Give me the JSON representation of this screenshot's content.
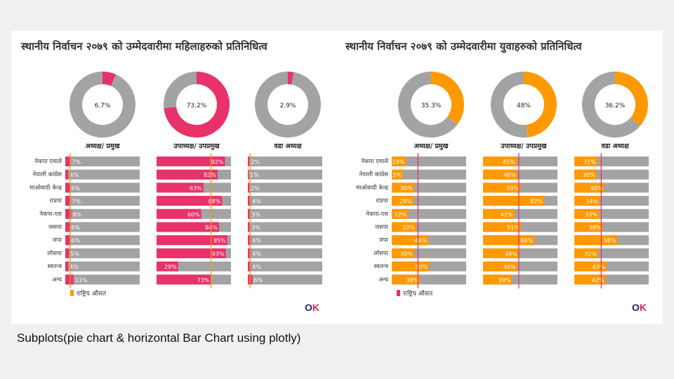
{
  "caption": "Subplots(pie chart & horizontal Bar Chart using plotly)",
  "legend_label": "राष्ट्रिय औसत",
  "logo_text": {
    "o": "O",
    "k": "K"
  },
  "colors": {
    "gray": "#a3a3a3",
    "women": "#e8326a",
    "youth": "#ff9900",
    "women_avg": "#ff9900",
    "youth_avg": "#e8326a"
  },
  "chart_data": [
    {
      "type": "pie",
      "title": "स्थानीय निर्वाचन २०७९ को उम्मेदवारीमा महिलाहरुको प्रतिनिधित्व",
      "categories": [
        "अध्यक्ष/ प्रमुख",
        "उपाध्यक्ष/ उपप्रमुख",
        "वडा अध्यक्ष"
      ],
      "values": [
        6.7,
        73.2,
        2.9
      ],
      "labels": [
        "6.7%",
        "73.2%",
        "2.9%"
      ],
      "colors": [
        "#e8326a",
        "#a3a3a3"
      ]
    },
    {
      "type": "bar",
      "orientation": "horizontal",
      "parties": [
        "नेकपा एमाले",
        "नेपाली कांग्रेस",
        "माओवादी केन्द्र",
        "राप्रपा",
        "नेकपा-एस",
        "जसपा",
        "जपा",
        "लोसपा",
        "स्वतन्त्र",
        "अन्य"
      ],
      "series": [
        {
          "values": [
            7,
            4,
            6,
            7,
            8,
            6,
            6,
            5,
            4,
            11
          ]
        },
        {
          "values": [
            92,
            82,
            63,
            88,
            60,
            84,
            95,
            93,
            29,
            73
          ]
        },
        {
          "values": [
            2,
            1,
            2,
            4,
            3,
            3,
            4,
            4,
            4,
            6
          ]
        }
      ],
      "national_average": [
        6.7,
        73.2,
        2.9
      ],
      "xlim": [
        0,
        100
      ]
    },
    {
      "type": "pie",
      "title": "स्थानीय निर्वाचन २०७९ को उम्मेदवारीमा युवाहरुको प्रतिनिधित्व",
      "categories": [
        "अध्यक्ष/ प्रमुख",
        "उपाध्यक्ष/ उपप्रमुख",
        "वडा अध्यक्ष"
      ],
      "values": [
        35.3,
        48,
        36.2
      ],
      "labels": [
        "35.3%",
        "48%",
        "36.2%"
      ],
      "colors": [
        "#ff9900",
        "#a3a3a3"
      ]
    },
    {
      "type": "bar",
      "orientation": "horizontal",
      "parties": [
        "नेकपा एमाले",
        "नेपाली कांग्रेस",
        "माओवादी केन्द्र",
        "राप्रपा",
        "नेकपा-एस",
        "जसपा",
        "जपा",
        "लोसपा",
        "स्वतन्त्र",
        "अन्य"
      ],
      "series": [
        {
          "values": [
            19,
            15,
            30,
            29,
            22,
            33,
            49,
            30,
            50,
            38
          ]
        },
        {
          "values": [
            45,
            46,
            50,
            82,
            42,
            51,
            69,
            48,
            46,
            39
          ]
        },
        {
          "values": [
            31,
            30,
            40,
            34,
            33,
            38,
            58,
            32,
            43,
            42
          ]
        }
      ],
      "national_average": [
        35.3,
        48,
        36.2
      ],
      "xlim": [
        0,
        100
      ]
    }
  ]
}
